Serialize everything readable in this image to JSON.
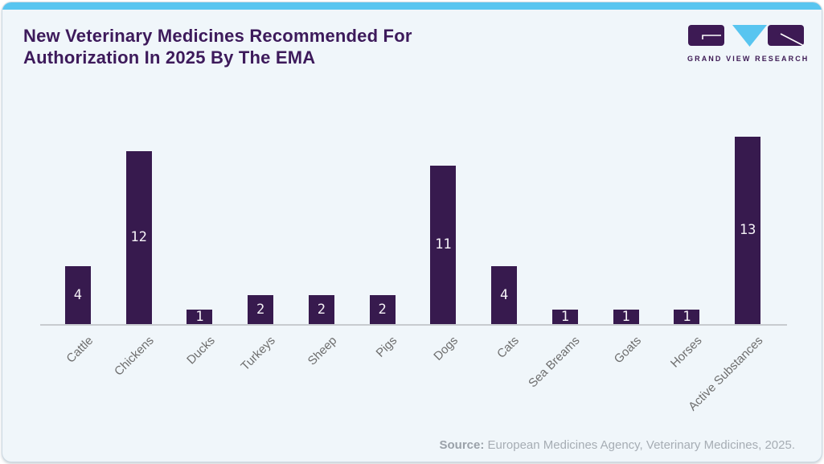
{
  "header": {
    "title_lines": [
      "New Veterinary Medicines Recommended For",
      "Authorization In 2025 By The EMA"
    ]
  },
  "logo": {
    "text": "GRAND VIEW RESEARCH"
  },
  "source": {
    "label": "Source:",
    "text": " European Medicines Agency, Veterinary Medicines, 2025."
  },
  "colors": {
    "accent_blue": "#58c5f0",
    "brand_purple": "#3d1a5b",
    "bar_fill": "#371a4e",
    "card_background": "#f0f6fa",
    "category_text": "#6e6e6e",
    "source_text": "#a6adb4",
    "axis_line": "#c7cbcf"
  },
  "chart_data": {
    "type": "bar",
    "title": "New Veterinary Medicines Recommended For Authorization In 2025 By The EMA",
    "categories": [
      "Cattle",
      "Chickens",
      "Ducks",
      "Turkeys",
      "Sheep",
      "Pigs",
      "Dogs",
      "Cats",
      "Sea Breams",
      "Goats",
      "Horses",
      "Active Substances"
    ],
    "values": [
      4,
      12,
      1,
      2,
      2,
      2,
      11,
      4,
      1,
      1,
      1,
      13
    ],
    "xlabel": "",
    "ylabel": "",
    "ylim": [
      0,
      13
    ],
    "grid": false,
    "legend": false,
    "bar_color": "#371a4e",
    "value_label_color": "#f5f2f7",
    "value_labels": "centered inside bars",
    "category_label_rotation": -45
  }
}
